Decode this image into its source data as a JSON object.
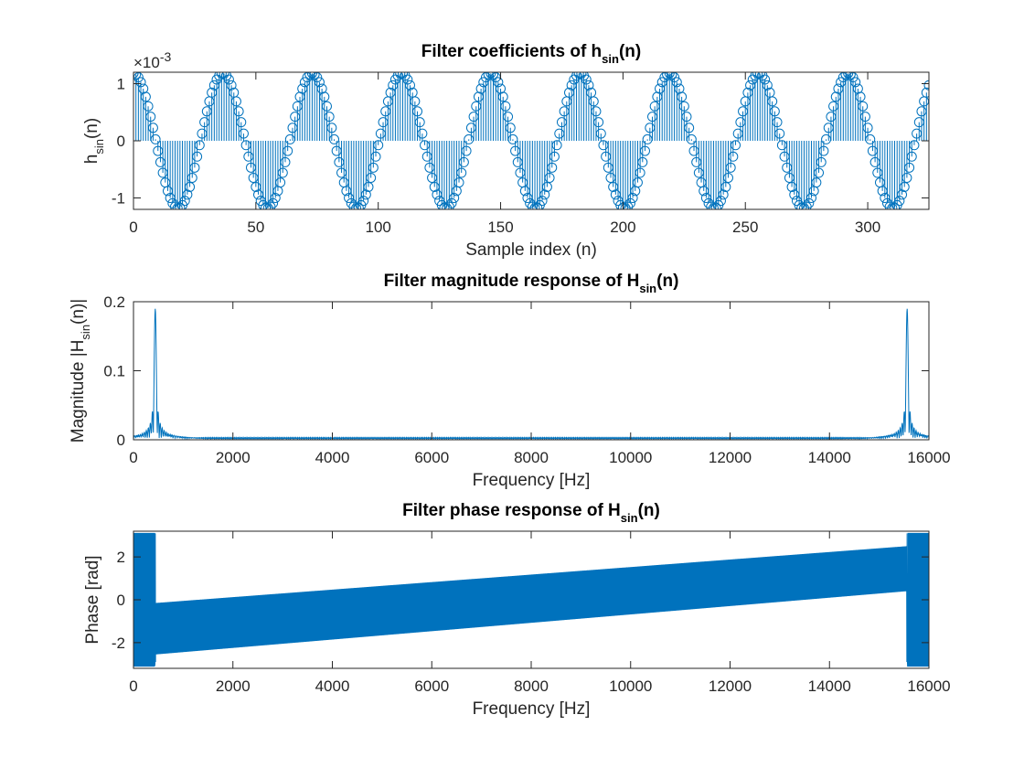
{
  "figure": {
    "background": "#ffffff",
    "line_color": "#0072bd"
  },
  "chart_data": [
    {
      "type": "stem",
      "title": {
        "main": "Filter coefficients of h",
        "sub": "sin",
        "tail": "(n)"
      },
      "xlabel": "Sample index (n)",
      "ylabel": {
        "main": "h",
        "sub": "sin",
        "tail": "(n)"
      },
      "y_exponent": "-3",
      "xlim": [
        0,
        325
      ],
      "ylim": [
        -0.0012,
        0.0012
      ],
      "xticks": [
        0,
        50,
        100,
        150,
        200,
        250,
        300
      ],
      "yticks": [
        -0.001,
        0,
        0.001
      ],
      "ytick_labels": [
        "-1",
        "0",
        "1"
      ],
      "series": [
        {
          "n": [
            0,
            325
          ],
          "amplitude": 0.00118,
          "period_samples": 36.5,
          "waveform": "cosine",
          "marker": "circle"
        }
      ]
    },
    {
      "type": "line",
      "title": {
        "main": "Filter magnitude response of H",
        "sub": "sin",
        "tail": "(n)"
      },
      "xlabel": "Frequency [Hz]",
      "ylabel": {
        "main": "Magnitude |H",
        "sub": "sin",
        "tail": "(n)|"
      },
      "xlim": [
        0,
        16000
      ],
      "ylim": [
        0,
        0.2
      ],
      "xticks": [
        0,
        2000,
        4000,
        6000,
        8000,
        10000,
        12000,
        14000,
        16000
      ],
      "yticks": [
        0,
        0.1,
        0.2
      ],
      "ytick_labels": [
        "0",
        "0.1",
        "0.2"
      ],
      "series": [
        {
          "peaks": [
            {
              "x": 438,
              "y": 0.19
            },
            {
              "x": 15562,
              "y": 0.19
            }
          ],
          "sidelobe_peak": 0.04,
          "floor": 0.003
        }
      ]
    },
    {
      "type": "line",
      "title": {
        "main": "Filter phase response of H",
        "sub": "sin",
        "tail": "(n)"
      },
      "xlabel": "Frequency [Hz]",
      "ylabel": {
        "main": "Phase [rad]"
      },
      "xlim": [
        0,
        16000
      ],
      "ylim": [
        -3.2,
        3.2
      ],
      "xticks": [
        0,
        2000,
        4000,
        6000,
        8000,
        10000,
        12000,
        14000,
        16000
      ],
      "yticks": [
        -2,
        0,
        2
      ],
      "ytick_labels": [
        "-2",
        "0",
        "2"
      ],
      "series": [
        {
          "wrapped_segments": [
            [
              0,
              430
            ],
            [
              15570,
              16000
            ]
          ],
          "linear_region": [
            450,
            15550
          ],
          "center_start": -1.35,
          "center_end": 1.45,
          "half_width_start": 1.2,
          "half_width_end": 1.05
        }
      ]
    }
  ]
}
